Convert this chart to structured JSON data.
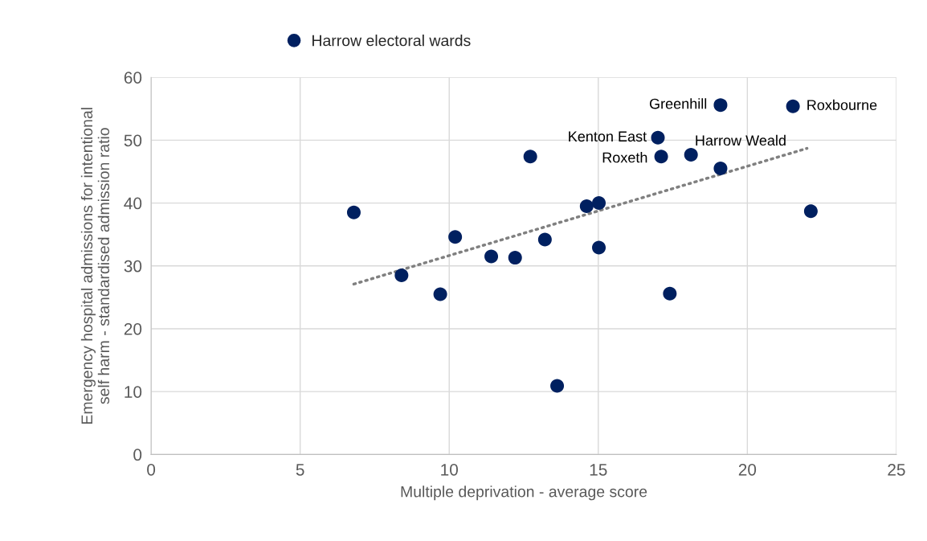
{
  "chart_data": {
    "type": "scatter",
    "xlabel": "Multiple deprivation - average score",
    "ylabel": "Emergency hospital admissions for intentional\nself harm - standardised admission ratio",
    "series": [
      {
        "name": "Harrow electoral wards",
        "color": "#002060",
        "marker": "circle",
        "x": [
          6.8,
          8.4,
          9.7,
          10.2,
          11.41,
          12.21,
          12.72,
          13.21,
          13.62,
          14.61,
          15.02,
          15.02,
          17.0,
          17.11,
          17.4,
          18.11,
          19.1,
          19.1,
          21.53,
          22.13
        ],
        "values": [
          38.5,
          28.5,
          25.5,
          34.6,
          31.5,
          31.3,
          47.4,
          34.2,
          10.9,
          39.5,
          40.0,
          32.9,
          50.4,
          47.4,
          25.6,
          47.7,
          45.5,
          55.6,
          55.4,
          38.7
        ]
      },
      {
        "color": "#808080",
        "type": "line",
        "line_style": "dotted",
        "x": [
          6.8,
          22.0
        ],
        "values": [
          27.1,
          48.7
        ]
      }
    ],
    "annotations": [
      {
        "text": "Greenhill",
        "x": 19.1,
        "y": 55.6
      },
      {
        "text": "Roxbourne",
        "x": 21.53,
        "y": 55.4
      },
      {
        "text": "Kenton East",
        "x": 17.0,
        "y": 50.4
      },
      {
        "text": "Harrow Weald",
        "x": 19.1,
        "y": 45.5
      },
      {
        "text": "Roxeth",
        "x": 17.11,
        "y": 47.4
      }
    ],
    "xlim": [
      0,
      25
    ],
    "xticks": [
      0,
      5,
      10,
      15,
      20,
      25
    ],
    "ylim": [
      0,
      60
    ],
    "yticks": [
      0,
      10,
      20,
      30,
      40,
      50,
      60
    ],
    "grid": true,
    "legend": "top"
  }
}
